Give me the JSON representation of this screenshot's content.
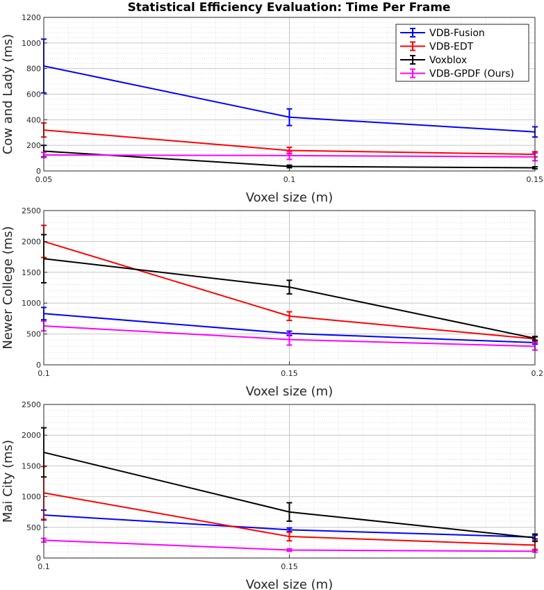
{
  "figure_title": "Statistical Efficiency Evaluation: Time Per Frame",
  "chart_data": [
    {
      "type": "line",
      "id": "cow",
      "ylabel": "Cow and Lady (ms)",
      "xlabel": "Voxel size (m)",
      "x": [
        0.05,
        0.1,
        0.15
      ],
      "xlim": [
        0.05,
        0.15
      ],
      "ylim": [
        0,
        1200
      ],
      "xticks": [
        "0.05",
        "0.1",
        "0.15"
      ],
      "yticks": [
        0,
        200,
        400,
        600,
        800,
        1000,
        1200
      ],
      "legend": "top-right",
      "grid": true,
      "series": [
        {
          "name": "VDB-Fusion",
          "color": "#0000ff",
          "values": [
            820,
            420,
            305
          ],
          "err": [
            210,
            65,
            40
          ]
        },
        {
          "name": "VDB-EDT",
          "color": "#ff0000",
          "values": [
            320,
            160,
            130
          ],
          "err": [
            55,
            25,
            20
          ]
        },
        {
          "name": "Voxblox",
          "color": "#000000",
          "values": [
            155,
            35,
            25
          ],
          "err": [
            45,
            10,
            8
          ]
        },
        {
          "name": "VDB-GPDF (Ours)",
          "color": "#ff00ff",
          "values": [
            125,
            120,
            110
          ],
          "err": [
            20,
            30,
            30
          ]
        }
      ]
    },
    {
      "type": "line",
      "id": "newer",
      "ylabel": "Newer College (ms)",
      "xlabel": "Voxel size (m)",
      "x": [
        0.1,
        0.15,
        0.2
      ],
      "xlim": [
        0.1,
        0.2
      ],
      "ylim": [
        0,
        2500
      ],
      "xticks": [
        "0.1",
        "0.15",
        "0.2"
      ],
      "yticks": [
        0,
        500,
        1000,
        1500,
        2000,
        2500
      ],
      "grid": true,
      "series": [
        {
          "name": "VDB-Fusion",
          "color": "#0000ff",
          "values": [
            830,
            510,
            360
          ],
          "err": [
            100,
            35,
            25
          ]
        },
        {
          "name": "VDB-EDT",
          "color": "#ff0000",
          "values": [
            2000,
            790,
            420
          ],
          "err": [
            260,
            70,
            30
          ]
        },
        {
          "name": "Voxblox",
          "color": "#000000",
          "values": [
            1720,
            1260,
            430
          ],
          "err": [
            390,
            110,
            30
          ]
        },
        {
          "name": "VDB-GPDF (Ours)",
          "color": "#ff00ff",
          "values": [
            630,
            410,
            300
          ],
          "err": [
            80,
            90,
            60
          ]
        }
      ]
    },
    {
      "type": "line",
      "id": "mai",
      "ylabel": "Mai City (ms)",
      "xlabel": "Voxel size (m)",
      "x": [
        0.1,
        0.15,
        0.2
      ],
      "xlim": [
        0.1,
        0.2
      ],
      "ylim": [
        0,
        2500
      ],
      "xticks": [
        "0.1",
        "0.15",
        ""
      ],
      "yticks": [
        0,
        500,
        1000,
        1500,
        2000,
        2500
      ],
      "grid": true,
      "series": [
        {
          "name": "VDB-Fusion",
          "color": "#0000ff",
          "values": [
            700,
            460,
            340
          ],
          "err": [
            80,
            30,
            30
          ]
        },
        {
          "name": "VDB-EDT",
          "color": "#ff0000",
          "values": [
            1060,
            350,
            210
          ],
          "err": [
            430,
            70,
            70
          ]
        },
        {
          "name": "Voxblox",
          "color": "#000000",
          "values": [
            1720,
            750,
            330
          ],
          "err": [
            400,
            150,
            60
          ]
        },
        {
          "name": "VDB-GPDF (Ours)",
          "color": "#ff00ff",
          "values": [
            290,
            130,
            110
          ],
          "err": [
            30,
            20,
            15
          ]
        }
      ]
    }
  ]
}
